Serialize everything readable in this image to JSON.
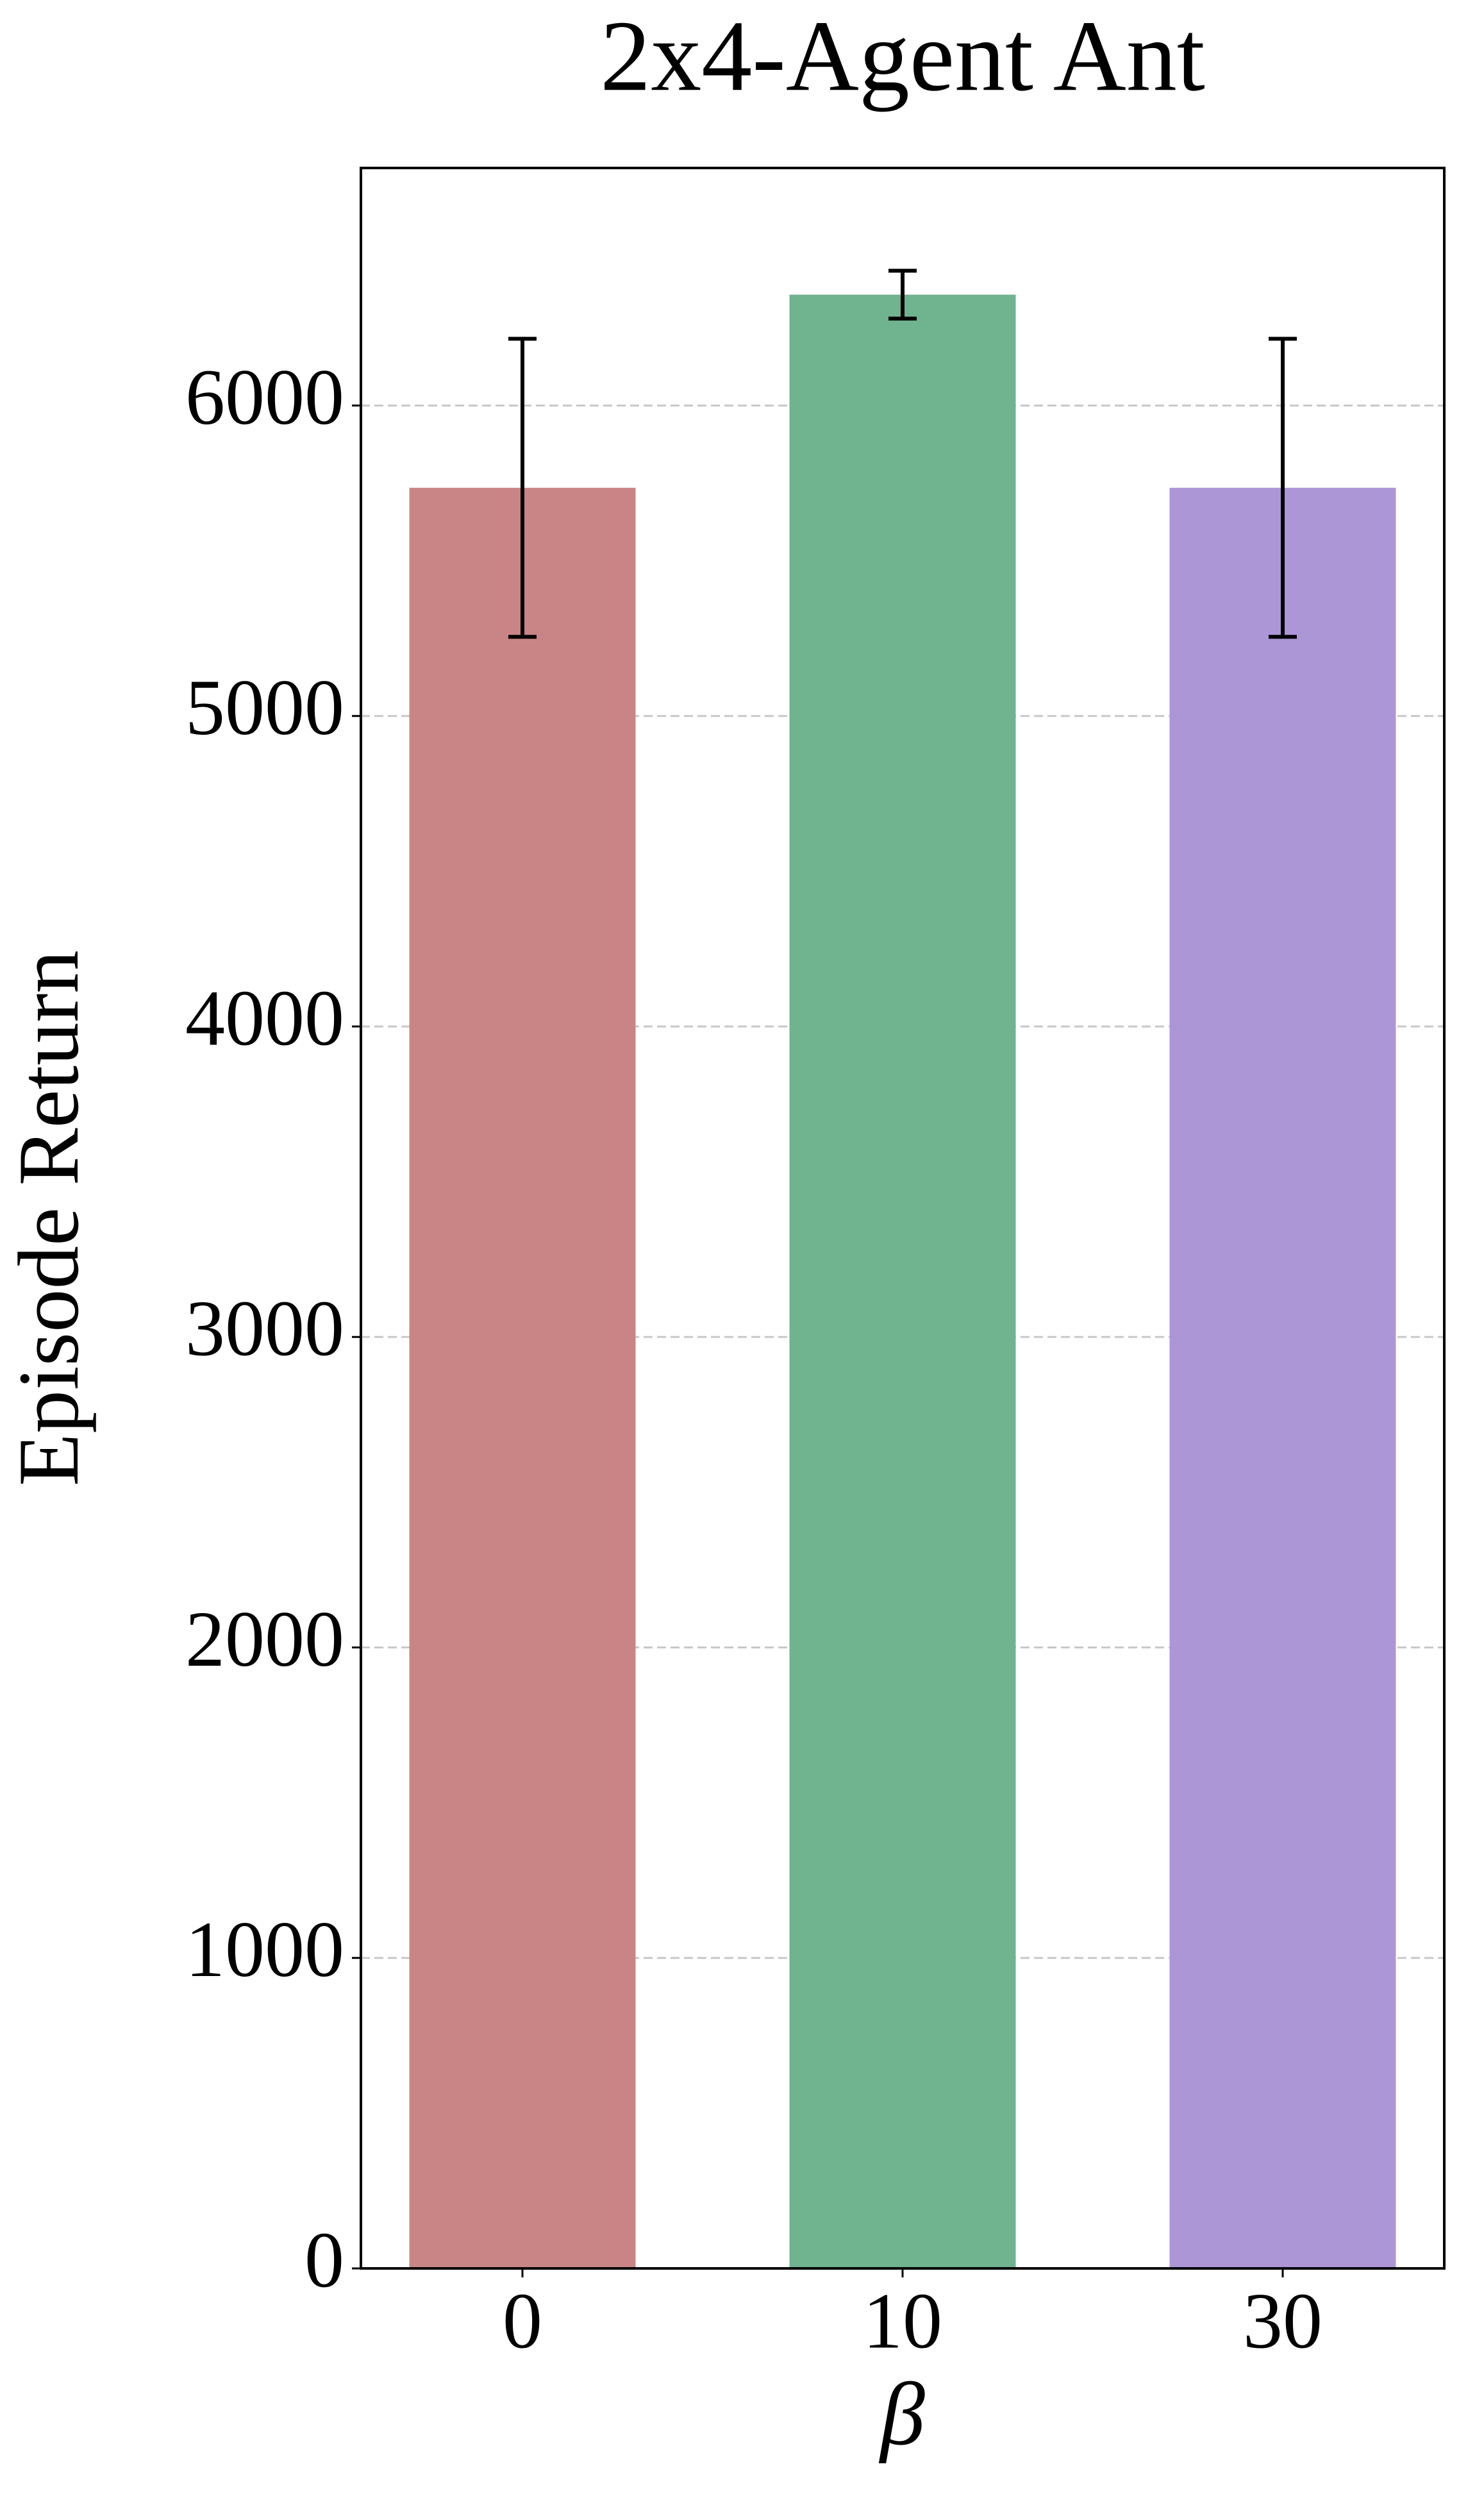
{
  "chart_data": {
    "type": "bar",
    "title": "2x4-Agent Ant",
    "xlabel": "β",
    "ylabel": "Episode Return",
    "categories": [
      "0",
      "10",
      "30"
    ],
    "values": [
      5735,
      6357,
      5735
    ],
    "errors": [
      480,
      77,
      480
    ],
    "colors": [
      "#c98585",
      "#6fb38f",
      "#ac96d6"
    ],
    "ylim": [
      0,
      6765
    ],
    "yticks": [
      0,
      1000,
      2000,
      3000,
      4000,
      5000,
      6000
    ],
    "grid": true
  }
}
